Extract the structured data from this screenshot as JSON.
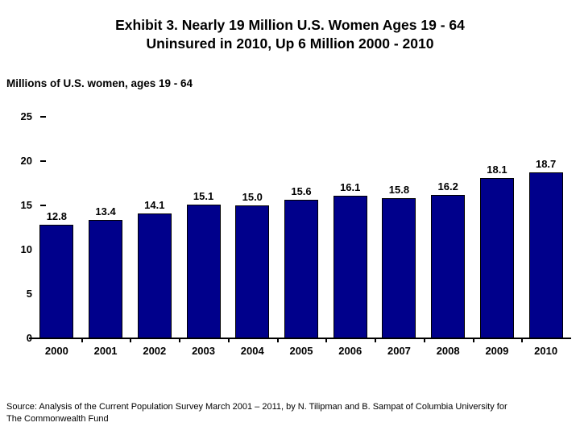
{
  "header": {
    "title_line1": "Exhibit 3. Nearly 19 Million U.S. Women Ages 19 - 64",
    "title_line2": "Uninsured in 2010, Up 6 Million 2000 - 2010"
  },
  "chart_data": {
    "type": "bar",
    "title": "Exhibit 3. Nearly 19 Million U.S. Women Ages 19 - 64 Uninsured in 2010, Up 6 Million 2000 - 2010",
    "unit_label": "Millions of U.S. women, ages 19 - 64",
    "categories": [
      "2000",
      "2001",
      "2002",
      "2003",
      "2004",
      "2005",
      "2006",
      "2007",
      "2008",
      "2009",
      "2010"
    ],
    "values": [
      12.8,
      13.4,
      14.1,
      15.1,
      15.0,
      15.6,
      16.1,
      15.8,
      16.2,
      18.1,
      18.7
    ],
    "bar_labels": [
      "12.8",
      "13.4",
      "14.1",
      "15.1",
      "15.0",
      "15.6",
      "16.1",
      "15.8",
      "16.2",
      "18.1",
      "18.7"
    ],
    "xlabel": "",
    "ylabel": "",
    "ylim": [
      0,
      25
    ],
    "yticks": [
      0,
      5,
      10,
      15,
      20,
      25
    ],
    "grid": false,
    "legend": "none",
    "bar_color": "#00008B",
    "bar_border_color": "#000000",
    "label_color": "#000000"
  },
  "footer": {
    "source_line1": "Source: Analysis of the Current Population Survey March 2001 – 2011, by N. Tilipman and B. Sampat of Columbia University for",
    "source_line2": "The Commonwealth Fund"
  }
}
